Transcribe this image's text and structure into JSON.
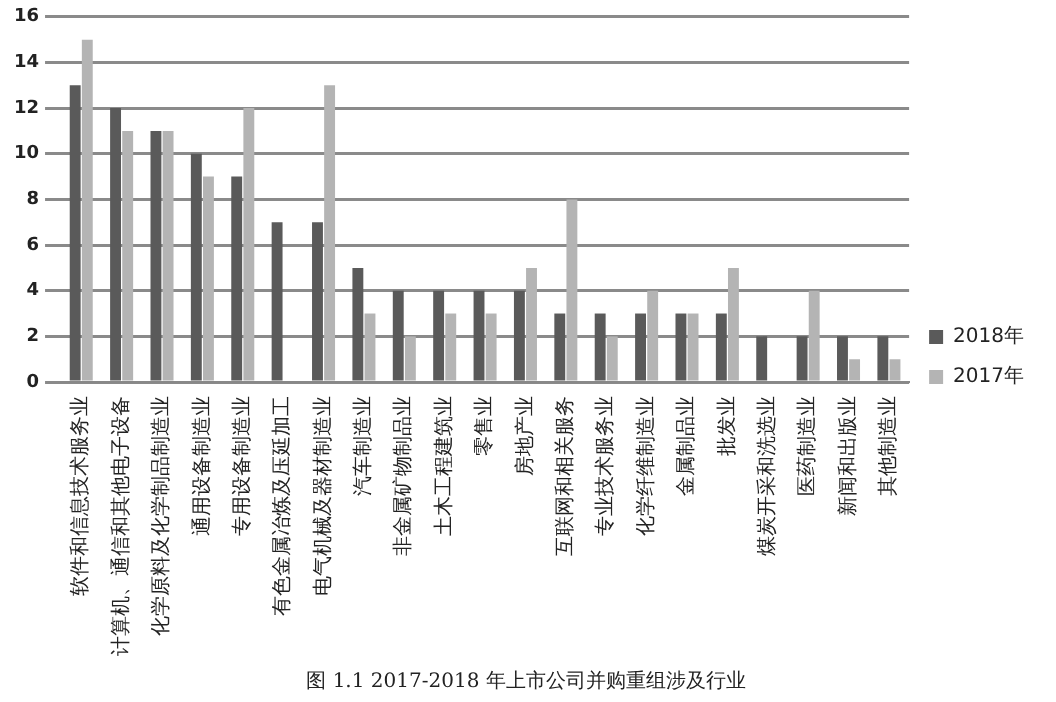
{
  "chart_data": {
    "type": "bar",
    "title": "图 1.1 2017-2018 年上市公司并购重组涉及行业",
    "categories": [
      "软件和信息技术服务业",
      "计算机、通信和其他电子设备",
      "化学原料及化学制品制造业",
      "通用设备制造业",
      "专用设备制造业",
      "有色金属冶炼及压延加工",
      "电气机械及器材制造业",
      "汽车制造业",
      "非金属矿物制品业",
      "土木工程建筑业",
      "零售业",
      "房地产业",
      "互联网和相关服务",
      "专业技术服务业",
      "化学纤维制造业",
      "金属制品业",
      "批发业",
      "煤炭开采和洗选业",
      "医药制造业",
      "新闻和出版业",
      "其他制造业"
    ],
    "series": [
      {
        "name": "2018年",
        "color": "#5a5a5a",
        "values": [
          13,
          12,
          11,
          10,
          9,
          7,
          7,
          5,
          4,
          4,
          4,
          4,
          3,
          3,
          3,
          3,
          3,
          2,
          2,
          2,
          2
        ]
      },
      {
        "name": "2017年",
        "color": "#b4b4b4",
        "values": [
          15,
          11,
          11,
          9,
          12,
          null,
          13,
          3,
          2,
          3,
          3,
          5,
          8,
          2,
          4,
          3,
          5,
          null,
          4,
          1,
          1
        ]
      }
    ],
    "ylim": [
      0,
      16
    ],
    "yticks": [
      0,
      2,
      4,
      6,
      8,
      10,
      12,
      14,
      16
    ],
    "grid": "y",
    "legend": "right"
  }
}
